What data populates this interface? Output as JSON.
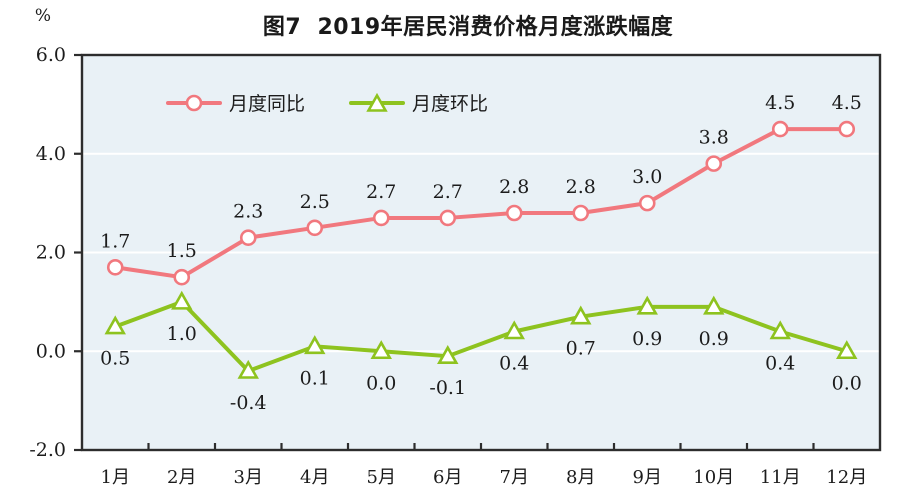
{
  "chart_data": {
    "type": "line",
    "title": "图7  2019年居民消费价格月度涨跌幅度",
    "y_unit": "%",
    "categories": [
      "1月",
      "2月",
      "3月",
      "4月",
      "5月",
      "6月",
      "7月",
      "8月",
      "9月",
      "10月",
      "11月",
      "12月"
    ],
    "series": [
      {
        "name": "月度同比",
        "color": "#f1787e",
        "marker": "circle",
        "label_position": "above",
        "values": [
          1.7,
          1.5,
          2.3,
          2.5,
          2.7,
          2.7,
          2.8,
          2.8,
          3.0,
          3.8,
          4.5,
          4.5
        ]
      },
      {
        "name": "月度环比",
        "color": "#8ec31f",
        "marker": "triangle",
        "label_position": "below",
        "values": [
          0.5,
          1.0,
          -0.4,
          0.1,
          0.0,
          -0.1,
          0.4,
          0.7,
          0.9,
          0.9,
          0.4,
          0.0
        ]
      }
    ],
    "ylim": [
      -2.0,
      6.0
    ],
    "yticks": [
      6.0,
      4.0,
      2.0,
      0.0,
      -2.0
    ],
    "ytick_labels": [
      "6.0",
      "4.0",
      "2.0",
      "0.0",
      "-2.0"
    ],
    "xlabel": "",
    "ylabel": "",
    "grid": "horizontal",
    "legend_position": "top-inside",
    "colors": {
      "plot_background": "#e9f1f6",
      "grid_line": "#ffffff",
      "axis_border": "#2d2d2d",
      "text": "#1c1c1c"
    }
  }
}
